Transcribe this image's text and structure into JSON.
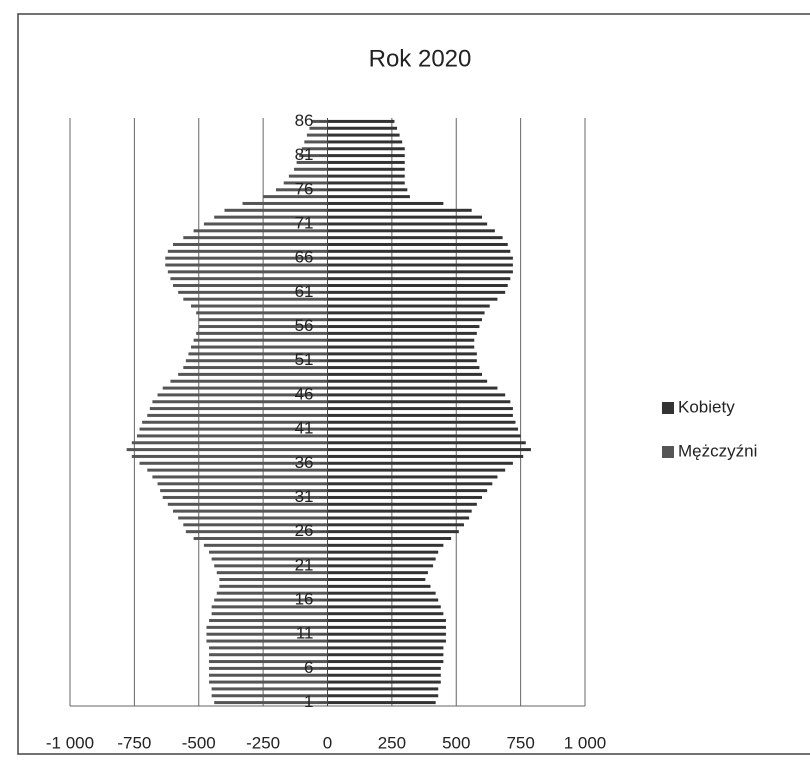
{
  "chart_data": {
    "type": "pyramid",
    "title": "Rok 2020",
    "categories": [
      "1",
      null,
      null,
      null,
      null,
      "6",
      null,
      null,
      null,
      null,
      "11",
      null,
      null,
      null,
      null,
      "16",
      null,
      null,
      null,
      null,
      "21",
      null,
      null,
      null,
      null,
      "26",
      null,
      null,
      null,
      null,
      "31",
      null,
      null,
      null,
      null,
      "36",
      null,
      null,
      null,
      null,
      "41",
      null,
      null,
      null,
      null,
      "46",
      null,
      null,
      null,
      null,
      "51",
      null,
      null,
      null,
      null,
      "56",
      null,
      null,
      null,
      null,
      "61",
      null,
      null,
      null,
      null,
      "66",
      null,
      null,
      null,
      null,
      "71",
      null,
      null,
      null,
      null,
      "76",
      null,
      null,
      null,
      null,
      "81",
      null,
      null,
      null,
      null,
      "86"
    ],
    "series": [
      {
        "name": "Kobiety",
        "color": "#333333",
        "values": [
          420,
          430,
          430,
          440,
          440,
          440,
          450,
          450,
          450,
          460,
          460,
          460,
          460,
          450,
          440,
          430,
          420,
          400,
          380,
          390,
          410,
          420,
          430,
          450,
          480,
          510,
          530,
          550,
          560,
          580,
          600,
          620,
          640,
          660,
          690,
          720,
          760,
          790,
          770,
          750,
          740,
          730,
          720,
          720,
          710,
          690,
          660,
          620,
          600,
          590,
          580,
          580,
          570,
          570,
          580,
          590,
          600,
          610,
          630,
          660,
          690,
          700,
          710,
          720,
          720,
          720,
          710,
          700,
          680,
          650,
          620,
          600,
          560,
          450,
          320,
          310,
          300,
          300,
          300,
          300,
          300,
          300,
          290,
          280,
          270,
          260
        ]
      },
      {
        "name": "Mężczyźni",
        "color": "#555555",
        "values": [
          -440,
          -450,
          -450,
          -460,
          -460,
          -460,
          -460,
          -460,
          -460,
          -470,
          -470,
          -470,
          -460,
          -450,
          -450,
          -440,
          -430,
          -420,
          -420,
          -430,
          -440,
          -450,
          -460,
          -480,
          -520,
          -550,
          -560,
          -580,
          -600,
          -620,
          -640,
          -650,
          -660,
          -680,
          -700,
          -730,
          -760,
          -780,
          -760,
          -740,
          -730,
          -720,
          -700,
          -690,
          -680,
          -660,
          -640,
          -610,
          -580,
          -560,
          -550,
          -540,
          -530,
          -520,
          -510,
          -500,
          -500,
          -510,
          -530,
          -560,
          -580,
          -600,
          -610,
          -620,
          -630,
          -630,
          -620,
          -600,
          -560,
          -520,
          -480,
          -440,
          -400,
          -330,
          -250,
          -200,
          -170,
          -150,
          -130,
          -120,
          -110,
          -100,
          -90,
          -80,
          -70,
          -60
        ]
      }
    ],
    "xlim": [
      -1000,
      1000
    ],
    "xticks": [
      {
        "value": -1000,
        "label": "-1 000"
      },
      -750,
      -500,
      -250,
      0,
      250,
      500,
      750,
      {
        "value": 1000,
        "label": "1 000"
      }
    ],
    "grid": true,
    "legend": "right"
  }
}
